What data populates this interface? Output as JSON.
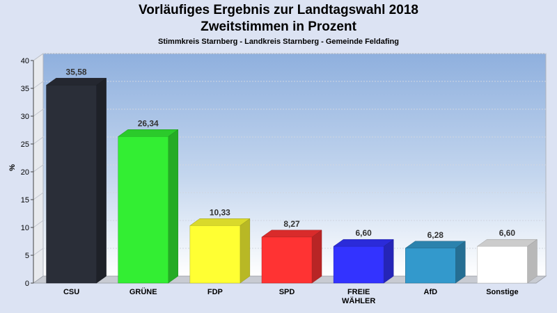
{
  "chart_data": {
    "type": "bar",
    "title": "Vorläufiges Ergebnis zur Landtagswahl 2018",
    "title2": "Zweitstimmen in Prozent",
    "subtitle": "Stimmkreis Starnberg - Landkreis Starnberg - Gemeinde Feldafing",
    "ylabel": "%",
    "ylim": [
      0,
      40
    ],
    "yticks": [
      0,
      5,
      10,
      15,
      20,
      25,
      30,
      35,
      40
    ],
    "grid": true,
    "categories": [
      [
        "CSU"
      ],
      [
        "GRÜNE"
      ],
      [
        "FDP"
      ],
      [
        "SPD"
      ],
      [
        "FREIE",
        "WÄHLER"
      ],
      [
        "AfD"
      ],
      [
        "Sonstige"
      ]
    ],
    "values": [
      35.58,
      26.34,
      10.33,
      8.27,
      6.6,
      6.28,
      6.6
    ],
    "value_labels": [
      "35,58",
      "26,34",
      "10,33",
      "8,27",
      "6,60",
      "6,28",
      "6,60"
    ],
    "colors": [
      "#2a2e38",
      "#33ee33",
      "#ffff33",
      "#ff3333",
      "#3333ff",
      "#3399cc",
      "#ffffff"
    ]
  }
}
